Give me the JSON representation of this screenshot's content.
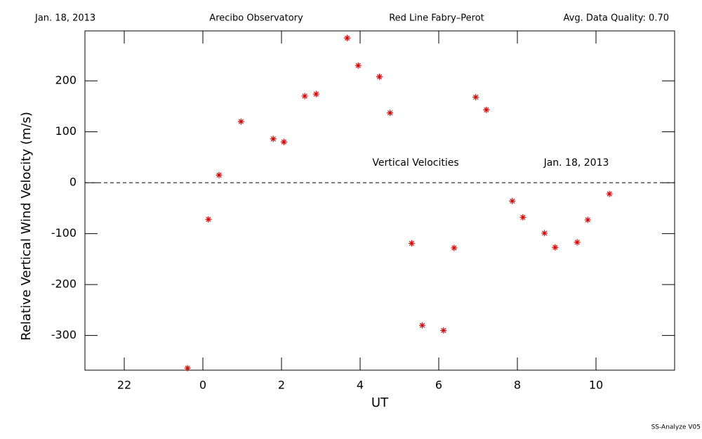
{
  "chart_data": {
    "type": "scatter",
    "header": [
      "Jan. 18, 2013",
      "Arecibo Observatory",
      "Red Line Fabry–Perot",
      "Avg. Data Quality: 0.70"
    ],
    "annotations": [
      "Vertical Velocities",
      "Jan. 18, 2013"
    ],
    "footer": "SS-Analyze V05",
    "x_label": "UT",
    "y_label": "Relative Vertical Wind Velocity (m/s)",
    "color": "#e00000",
    "hline": 0,
    "x": [
      -0.39,
      0.14,
      0.41,
      0.97,
      1.79,
      2.06,
      2.59,
      2.88,
      3.67,
      3.95,
      4.49,
      4.76,
      5.31,
      5.58,
      6.12,
      6.39,
      6.94,
      7.21,
      7.87,
      8.14,
      8.69,
      8.96,
      9.52,
      9.79,
      10.34
    ],
    "values": [
      -364,
      -72,
      15,
      120,
      86,
      80,
      170,
      174,
      284,
      230,
      208,
      137,
      -119,
      -280,
      -290,
      -128,
      168,
      143,
      -36,
      -68,
      -99,
      -127,
      -117,
      -73,
      -22
    ],
    "xlim": [
      -3,
      12
    ],
    "ylim": [
      -368,
      298
    ],
    "xticks": [
      {
        "value": -2,
        "label": "22"
      },
      0,
      2,
      4,
      6,
      8,
      10
    ],
    "yticks": [
      -300,
      -200,
      -100,
      0,
      100,
      200
    ]
  }
}
